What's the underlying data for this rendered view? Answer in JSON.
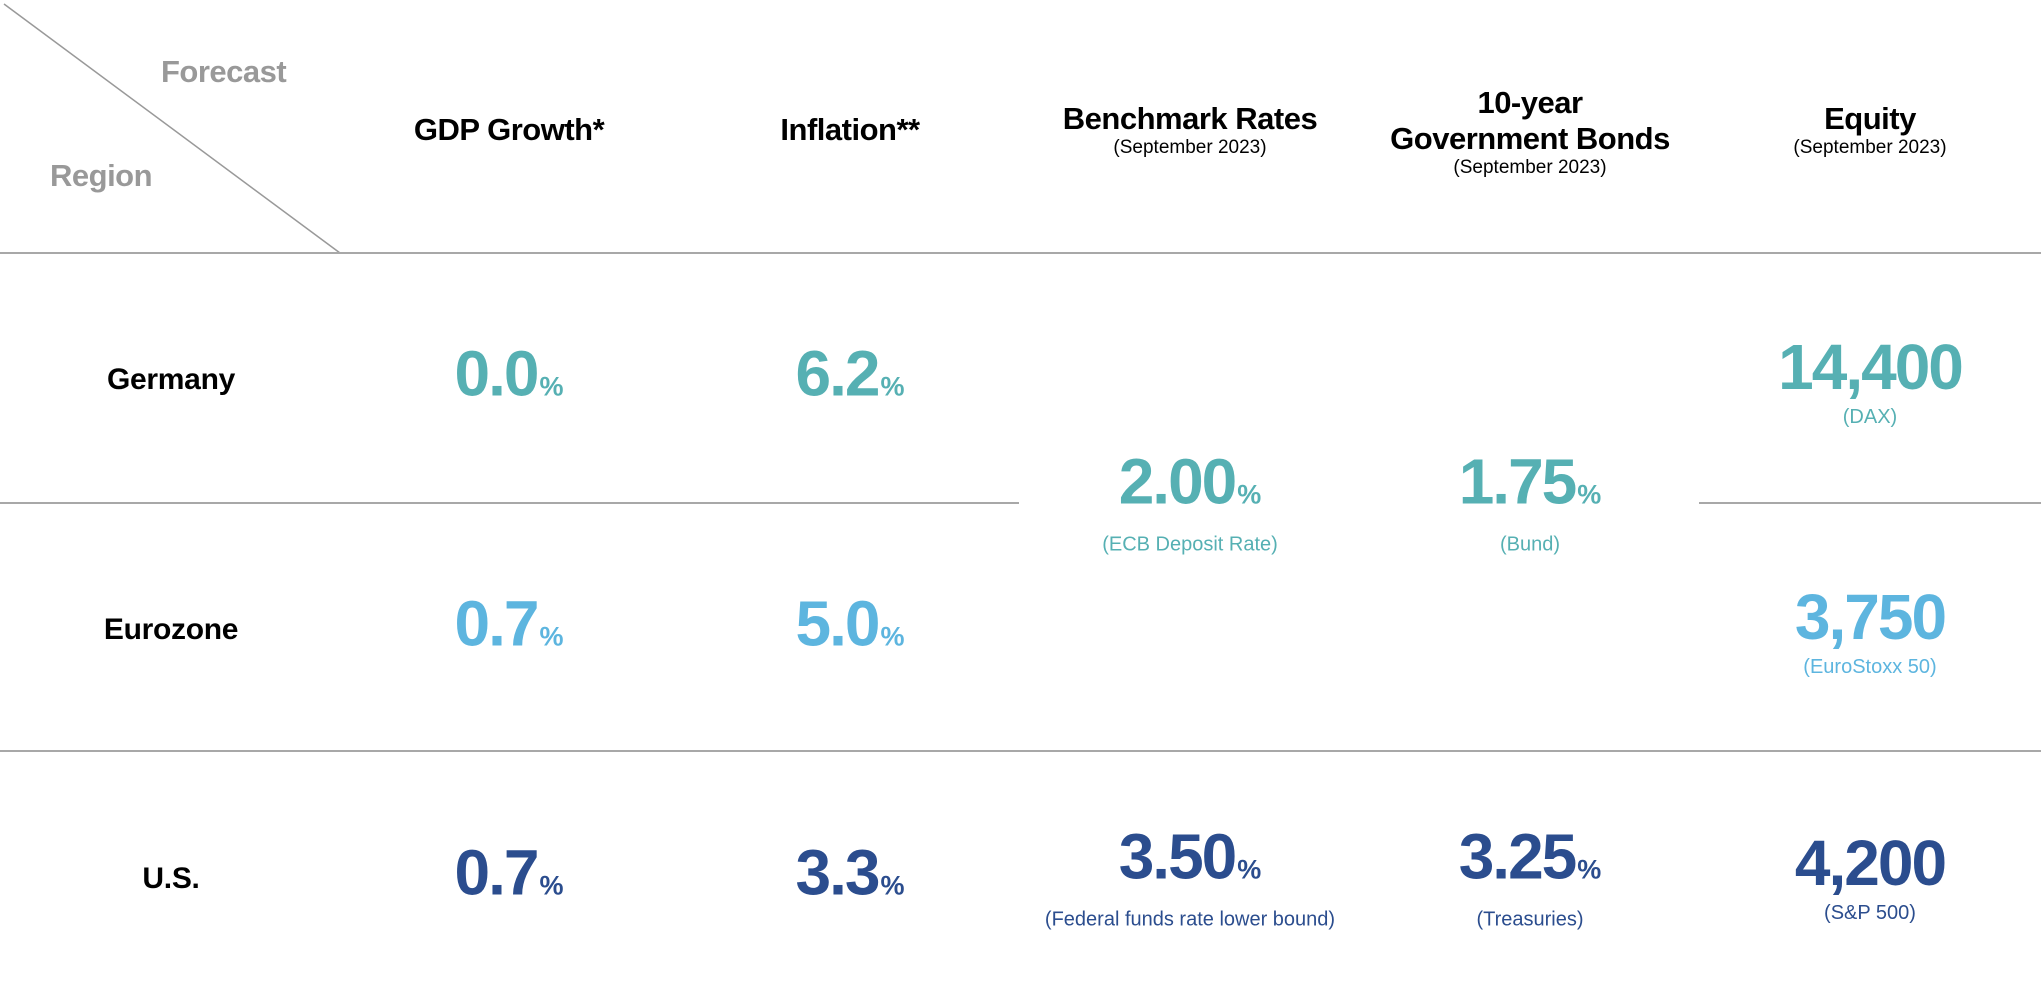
{
  "corner": {
    "forecast": "Forecast",
    "region": "Region"
  },
  "columns": [
    {
      "title": "GDP Growth*",
      "subtitle": ""
    },
    {
      "title": "Inflation**",
      "subtitle": ""
    },
    {
      "title": "Benchmark Rates",
      "subtitle": "(September 2023)"
    },
    {
      "title_line1": "10-year",
      "title_line2": "Government Bonds",
      "subtitle": "(September 2023)"
    },
    {
      "title": "Equity",
      "subtitle": "(September 2023)"
    }
  ],
  "rows": [
    {
      "region": "Germany",
      "gdp": "0.0",
      "inflation": "6.2",
      "equity": "14,400",
      "equity_index": "(DAX)"
    },
    {
      "region": "Eurozone",
      "gdp": "0.7",
      "inflation": "5.0",
      "equity": "3,750",
      "equity_index": "(EuroStoxx 50)"
    },
    {
      "region": "U.S.",
      "gdp": "0.7",
      "inflation": "3.3",
      "rate": "3.50",
      "rate_name": "(Federal funds rate lower bound)",
      "bond": "3.25",
      "bond_name": "(Treasuries)",
      "equity": "4,200",
      "equity_index": "(S&P 500)"
    }
  ],
  "euro_shared": {
    "rate": "2.00",
    "rate_name": "(ECB Deposit Rate)",
    "bond": "1.75",
    "bond_name": "(Bund)"
  },
  "percent": "%",
  "colors": {
    "germany": "#56b0b3",
    "eurozone": "#5db5df",
    "us": "#2b4d8e",
    "lines": "#a8a8a8",
    "corner_text": "#999999"
  }
}
